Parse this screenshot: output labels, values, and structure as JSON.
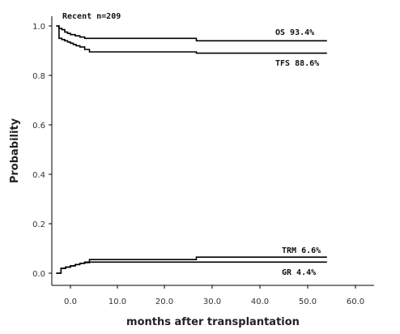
{
  "chart_data": {
    "type": "line",
    "title": "Recent  n=209",
    "xlabel": "months after transplantation",
    "ylabel": "Probability",
    "xlim": [
      -4,
      62
    ],
    "ylim": [
      0,
      1.0
    ],
    "x_ticks": [
      "0.0",
      "10.0",
      "20.0",
      "30.0",
      "40.0",
      "50.0",
      "60.0"
    ],
    "y_ticks": [
      "0.0",
      "0.2",
      "0.4",
      "0.6",
      "0.8",
      "1.0"
    ],
    "grid": false,
    "series": [
      {
        "name": "OS 93.4%",
        "step": true,
        "x": [
          -3,
          -2.4,
          -1.8,
          -1.2,
          -0.6,
          0,
          1,
          2,
          3,
          26.5,
          54
        ],
        "y": [
          1.0,
          0.99,
          0.985,
          0.975,
          0.97,
          0.965,
          0.96,
          0.955,
          0.95,
          0.94,
          0.94
        ]
      },
      {
        "name": "TFS 88.6%",
        "step": true,
        "x": [
          -3,
          -2.4,
          -1.8,
          -1.2,
          -0.6,
          0,
          0.6,
          1.2,
          2,
          3,
          4,
          26.5,
          54
        ],
        "y": [
          1.0,
          0.95,
          0.945,
          0.94,
          0.935,
          0.93,
          0.925,
          0.92,
          0.915,
          0.905,
          0.895,
          0.89,
          0.89
        ]
      },
      {
        "name": "TRM 6.6%",
        "step": true,
        "x": [
          -3,
          -2,
          -1,
          0,
          1,
          2,
          3,
          4,
          26.5,
          54
        ],
        "y": [
          0.0,
          0.02,
          0.025,
          0.03,
          0.035,
          0.04,
          0.045,
          0.055,
          0.065,
          0.065
        ]
      },
      {
        "name": "GR 4.4%",
        "step": true,
        "x": [
          -3,
          -2,
          -1,
          0,
          1,
          2,
          3,
          4,
          54
        ],
        "y": [
          0.0,
          0.02,
          0.025,
          0.03,
          0.035,
          0.04,
          0.043,
          0.045,
          0.045
        ]
      }
    ],
    "annotations": [
      "Recent  n=209",
      "OS 93.4%",
      "TFS 88.6%",
      "TRM 6.6%",
      "GR 4.4%"
    ]
  }
}
